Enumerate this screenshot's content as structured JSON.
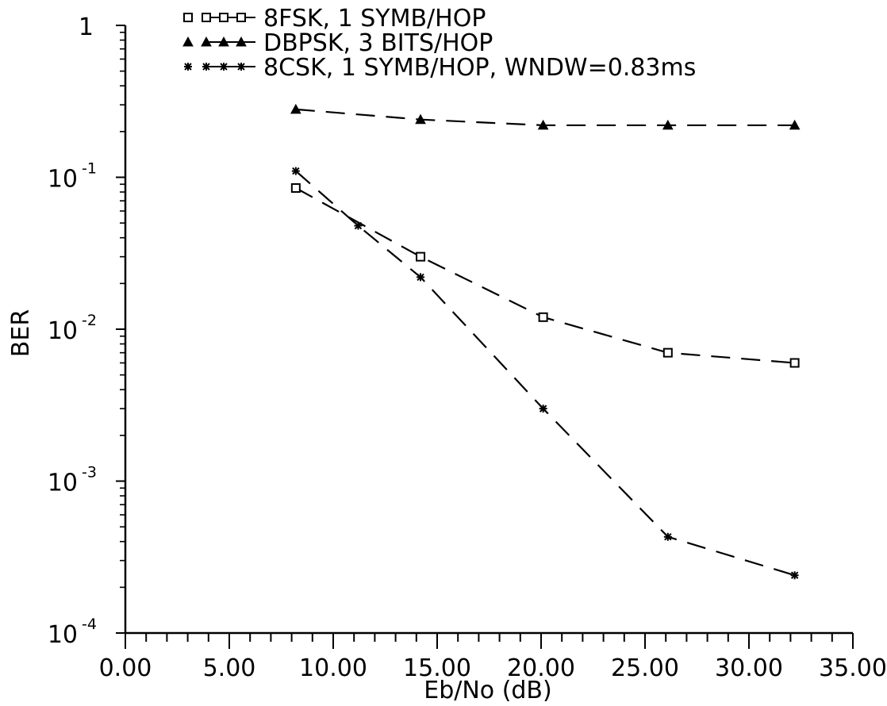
{
  "chart_data": {
    "type": "line",
    "title": "",
    "xlabel": "Eb/No (dB)",
    "ylabel": "BER",
    "xlim": [
      0,
      35
    ],
    "ylim": [
      0.0001,
      1
    ],
    "yscale": "log",
    "grid": false,
    "legend_position": "top",
    "x_ticks": [
      "0.00",
      "5.00",
      "10.00",
      "15.00",
      "20.00",
      "25.00",
      "30.00",
      "35.00"
    ],
    "y_ticks": [
      {
        "base": "1",
        "exp": ""
      },
      {
        "base": "10",
        "exp": "-1"
      },
      {
        "base": "10",
        "exp": "-2"
      },
      {
        "base": "10",
        "exp": "-3"
      },
      {
        "base": "10",
        "exp": "-4"
      }
    ],
    "series": [
      {
        "name": "8FSK, 1 SYMB/HOP",
        "marker": "square",
        "x": [
          8.2,
          14.2,
          20.1,
          26.1,
          32.2
        ],
        "y": [
          0.085,
          0.03,
          0.012,
          0.007,
          0.006
        ]
      },
      {
        "name": "DBPSK, 3 BITS/HOP",
        "marker": "triangle",
        "x": [
          8.2,
          14.2,
          20.1,
          26.1,
          32.2
        ],
        "y": [
          0.28,
          0.24,
          0.22,
          0.22,
          0.22
        ]
      },
      {
        "name": "8CSK, 1 SYMB/HOP, WNDW=0.83ms",
        "marker": "star",
        "x": [
          8.2,
          11.2,
          14.2,
          20.1,
          26.1,
          32.2
        ],
        "y": [
          0.11,
          0.048,
          0.022,
          0.003,
          0.00043,
          0.00024
        ]
      }
    ]
  }
}
